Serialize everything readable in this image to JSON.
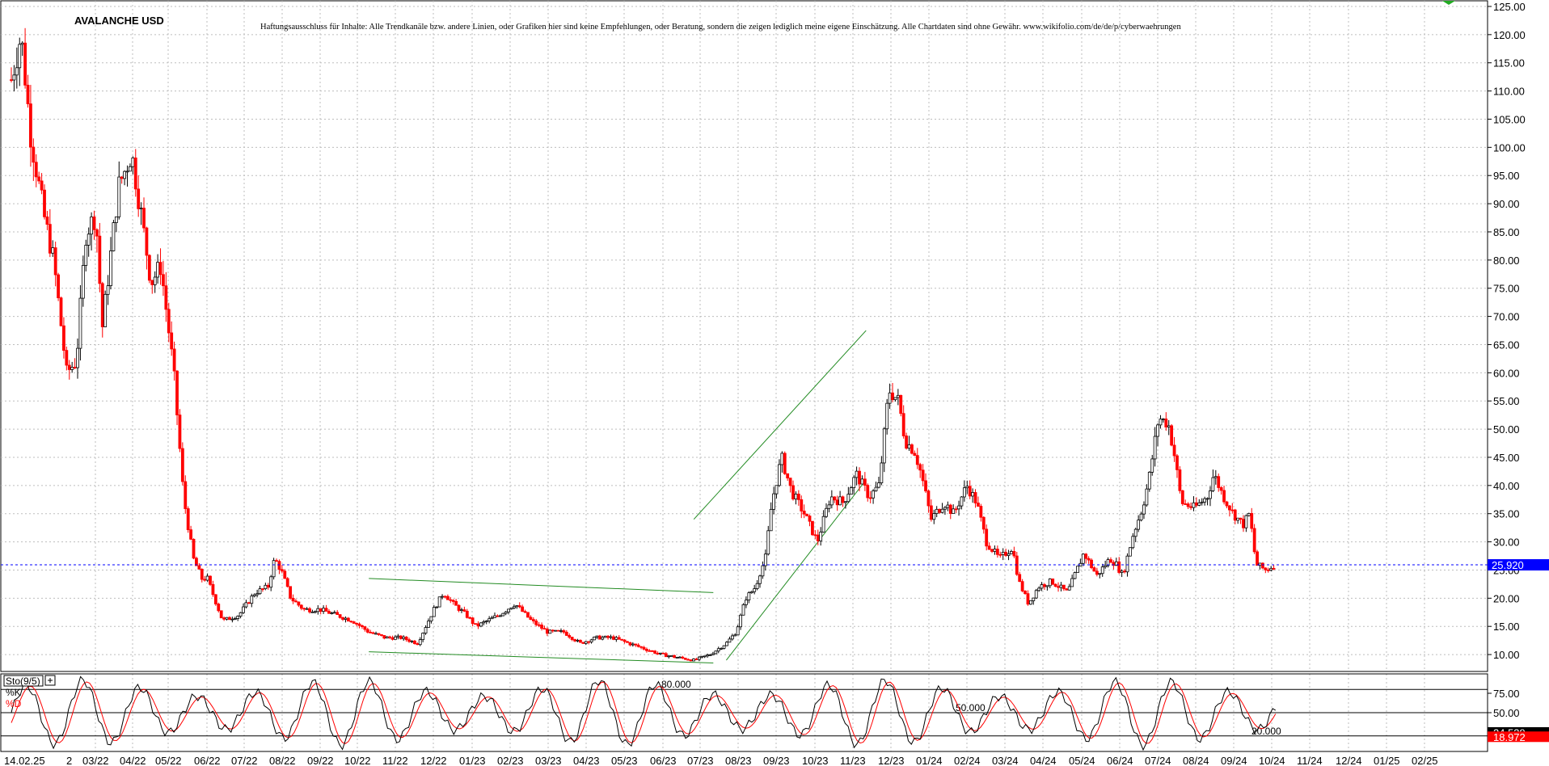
{
  "chart_data": {
    "type": "candlestick",
    "title": "AVALANCHE USD",
    "disclaimer": "Haftungsausschluss für Inhalte: Alle Trendkanäle bzw. andere Linien, oder Grafiken hier sind keine Empfehlungen, oder Beratung, sondern die zeigen lediglich meine eigene Einschätzung. Alle Chartdaten sind ohne Gewähr.  www.wikifolio.com/de/de/p/cyberwaehrungen",
    "price_axis": {
      "ylim": [
        7,
        126
      ],
      "tick_labels": [
        "125.00",
        "120.00",
        "115.00",
        "110.00",
        "105.00",
        "100.00",
        "95.00",
        "90.00",
        "85.00",
        "80.00",
        "75.00",
        "70.00",
        "65.00",
        "60.00",
        "55.00",
        "50.00",
        "45.00",
        "40.00",
        "35.00",
        "30.00",
        "25.00",
        "20.00",
        "15.00",
        "10.00"
      ],
      "tick_values": [
        125,
        120,
        115,
        110,
        105,
        100,
        95,
        90,
        85,
        80,
        75,
        70,
        65,
        60,
        55,
        50,
        45,
        40,
        35,
        30,
        25,
        20,
        15,
        10
      ]
    },
    "x_labels": [
      "14.02.25",
      "2",
      "03/22",
      "04/22",
      "05/22",
      "06/22",
      "07/22",
      "08/22",
      "09/22",
      "10/22",
      "11/22",
      "12/22",
      "01/23",
      "02/23",
      "03/23",
      "04/23",
      "05/23",
      "06/23",
      "07/23",
      "08/23",
      "09/23",
      "10/23",
      "11/23",
      "12/23",
      "01/24",
      "02/24",
      "03/24",
      "04/24",
      "05/24",
      "06/24",
      "07/24",
      "08/24",
      "09/24",
      "10/24",
      "11/24",
      "12/24",
      "01/25",
      "02/25"
    ],
    "last_price": {
      "label": "25.920",
      "value": 25.92,
      "color": "#0000ff"
    },
    "price_points": [
      [
        0,
        112
      ],
      [
        0.3,
        120
      ],
      [
        0.6,
        102
      ],
      [
        1,
        88
      ],
      [
        1.3,
        80
      ],
      [
        1.7,
        60
      ],
      [
        2,
        62
      ],
      [
        2.3,
        85
      ],
      [
        2.6,
        88
      ],
      [
        2.8,
        68
      ],
      [
        3,
        78
      ],
      [
        3.3,
        93
      ],
      [
        3.7,
        99
      ],
      [
        4,
        88
      ],
      [
        4.3,
        76
      ],
      [
        4.6,
        79
      ],
      [
        5,
        60
      ],
      [
        5.3,
        38
      ],
      [
        5.6,
        27
      ],
      [
        5.9,
        23
      ],
      [
        6,
        24
      ],
      [
        6.5,
        16
      ],
      [
        7,
        17
      ],
      [
        7.5,
        21
      ],
      [
        7.9,
        22
      ],
      [
        8.1,
        27
      ],
      [
        8.3,
        25
      ],
      [
        8.6,
        20
      ],
      [
        9,
        18
      ],
      [
        9.5,
        18
      ],
      [
        10,
        17
      ],
      [
        10.5,
        16
      ],
      [
        11,
        14
      ],
      [
        11.5,
        13
      ],
      [
        12,
        13
      ],
      [
        12.5,
        12
      ],
      [
        13,
        18
      ],
      [
        13.3,
        21
      ],
      [
        13.6,
        19
      ],
      [
        14,
        17
      ],
      [
        14.3,
        15
      ],
      [
        15,
        17
      ],
      [
        15.5,
        19
      ],
      [
        16,
        16
      ],
      [
        16.5,
        14
      ],
      [
        17,
        14
      ],
      [
        17.5,
        12
      ],
      [
        18,
        13
      ],
      [
        18.5,
        13
      ],
      [
        19,
        12
      ],
      [
        19.5,
        11
      ],
      [
        20,
        10
      ],
      [
        20.5,
        9.5
      ],
      [
        21,
        9
      ],
      [
        21.5,
        10
      ],
      [
        22,
        12
      ],
      [
        22.3,
        14
      ],
      [
        22.6,
        20
      ],
      [
        22.9,
        22
      ],
      [
        23,
        24
      ],
      [
        23.2,
        27
      ],
      [
        23.4,
        37
      ],
      [
        23.7,
        45
      ],
      [
        24,
        39
      ],
      [
        24.4,
        35
      ],
      [
        24.8,
        30
      ],
      [
        25.2,
        38
      ],
      [
        25.6,
        37
      ],
      [
        26,
        42
      ],
      [
        26.4,
        38
      ],
      [
        26.7,
        40
      ],
      [
        27,
        57
      ],
      [
        27.3,
        55
      ],
      [
        27.5,
        48
      ],
      [
        27.8,
        46
      ],
      [
        28,
        42
      ],
      [
        28.3,
        34
      ],
      [
        28.7,
        37
      ],
      [
        29,
        35
      ],
      [
        29.4,
        40
      ],
      [
        29.7,
        37
      ],
      [
        30,
        30
      ],
      [
        30.4,
        27
      ],
      [
        30.8,
        29
      ],
      [
        31,
        23
      ],
      [
        31.3,
        19
      ],
      [
        31.6,
        22
      ],
      [
        32,
        23
      ],
      [
        32.5,
        21
      ],
      [
        33,
        28
      ],
      [
        33.4,
        24
      ],
      [
        33.8,
        27
      ],
      [
        34,
        26
      ],
      [
        34.2,
        24
      ],
      [
        34.5,
        31
      ],
      [
        34.8,
        36
      ],
      [
        35,
        41
      ],
      [
        35.3,
        52
      ],
      [
        35.6,
        51
      ],
      [
        35.8,
        45
      ],
      [
        36,
        37
      ],
      [
        36.4,
        36
      ],
      [
        36.8,
        38
      ],
      [
        37,
        42
      ],
      [
        37.3,
        38
      ],
      [
        37.6,
        35
      ],
      [
        37.9,
        33
      ],
      [
        38.1,
        35
      ],
      [
        38.3,
        26
      ],
      [
        38.6,
        25
      ],
      [
        38.9,
        26
      ]
    ],
    "trendlines": [
      {
        "from": [
          11,
          23.5
        ],
        "to": [
          21.6,
          21
        ]
      },
      {
        "from": [
          11,
          10.5
        ],
        "to": [
          21.6,
          8.5
        ]
      },
      {
        "from": [
          21,
          34
        ],
        "to": [
          26.3,
          67.5
        ]
      },
      {
        "from": [
          22,
          9
        ],
        "to": [
          26.3,
          41
        ]
      }
    ],
    "indicator": {
      "name": "Sto(9/5)",
      "k_label": "%K",
      "d_label": "%D",
      "k_color": "#000000",
      "d_color": "#ff0000",
      "ylim": [
        0,
        100
      ],
      "levels": [
        {
          "label": "80.000",
          "value": 80
        },
        {
          "label": "50.000",
          "value": 50
        },
        {
          "label": "20.000",
          "value": 20
        }
      ],
      "tick_labels": [
        "75.00",
        "50.00",
        "25.00"
      ],
      "tick_values": [
        75,
        50,
        25
      ],
      "k_last": {
        "label": "24.539",
        "value": 24.539
      },
      "d_last": {
        "label": "18.972",
        "value": 18.972
      }
    }
  }
}
